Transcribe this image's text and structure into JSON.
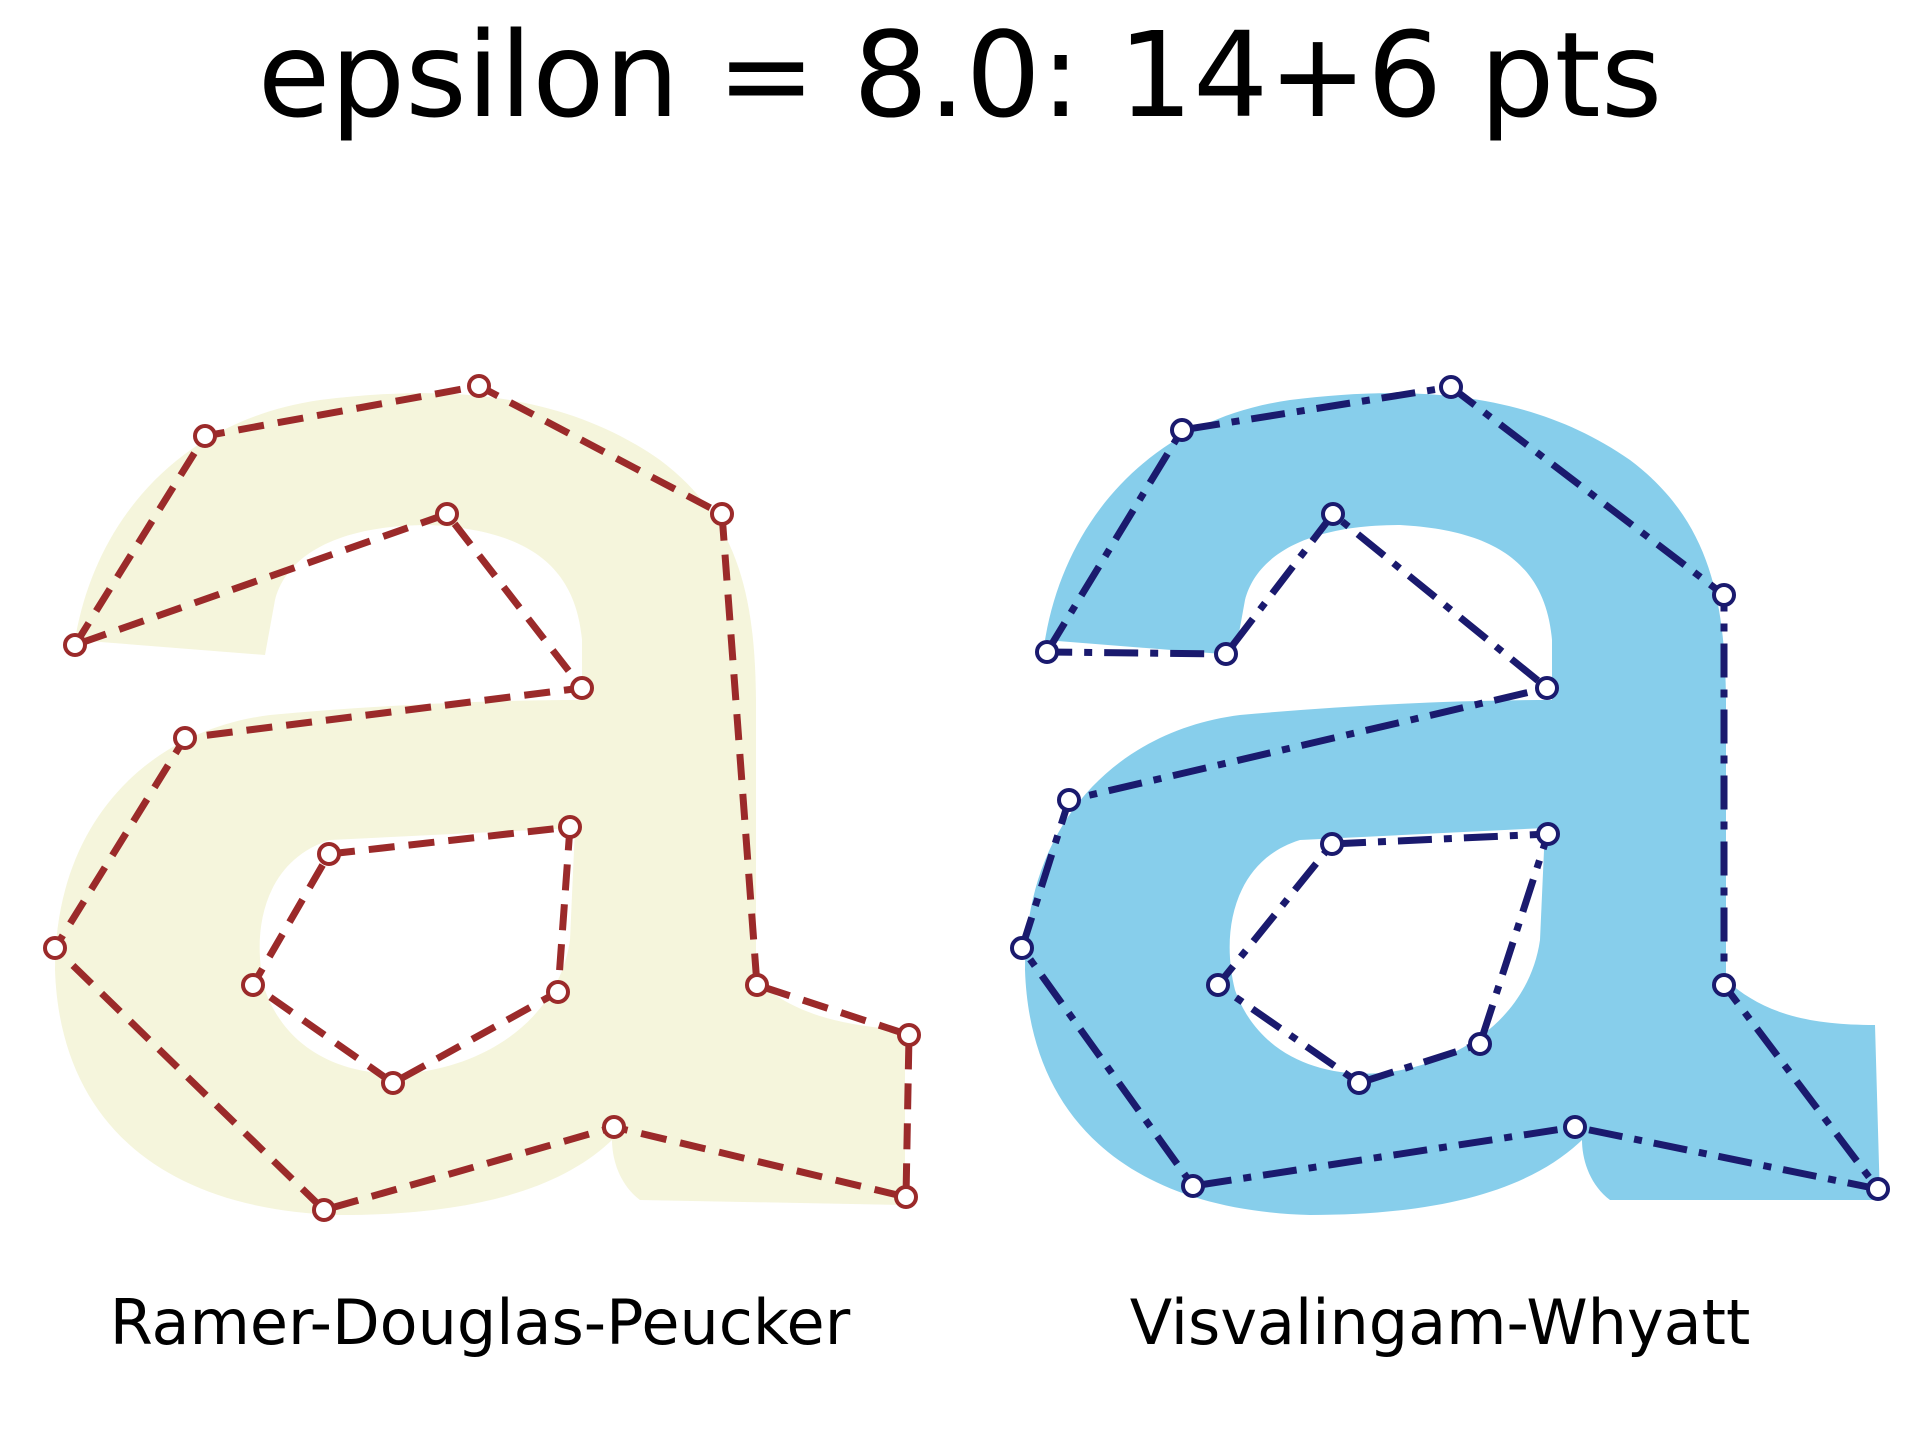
{
  "title": "epsilon = 8.0: 14+6 pts",
  "panels": [
    {
      "label": "Ramer-Douglas-Peucker",
      "fill_color": "#f5f5dc",
      "line_color": "#9b2a2a",
      "line_style": "dashed",
      "outer_points": [
        [
          75,
          645
        ],
        [
          205,
          436
        ],
        [
          479,
          386
        ],
        [
          722,
          514
        ],
        [
          757,
          985
        ],
        [
          909,
          1035
        ],
        [
          906,
          1197
        ],
        [
          614,
          1127
        ],
        [
          324,
          1210
        ],
        [
          55,
          948
        ],
        [
          185,
          738
        ],
        [
          582,
          688
        ],
        [
          447,
          514
        ]
      ],
      "inner_points": [
        [
          329,
          854
        ],
        [
          570,
          827
        ],
        [
          558,
          992
        ],
        [
          393,
          1083
        ],
        [
          253,
          985
        ]
      ]
    },
    {
      "label": "Visvalingam-Whyatt",
      "fill_color": "#87ceeb",
      "line_color": "#1a1a6e",
      "line_style": "dash-dot",
      "outer_points": [
        [
          1047,
          652
        ],
        [
          1182,
          430
        ],
        [
          1451,
          387
        ],
        [
          1724,
          595
        ],
        [
          1724,
          985
        ],
        [
          1878,
          1189
        ],
        [
          1575,
          1127
        ],
        [
          1193,
          1186
        ],
        [
          1022,
          948
        ],
        [
          1069,
          800
        ],
        [
          1547,
          688
        ],
        [
          1333,
          514
        ],
        [
          1226,
          654
        ]
      ],
      "inner_points": [
        [
          1332,
          844
        ],
        [
          1548,
          834
        ],
        [
          1480,
          1044
        ],
        [
          1359,
          1083
        ],
        [
          1218,
          985
        ]
      ]
    }
  ]
}
